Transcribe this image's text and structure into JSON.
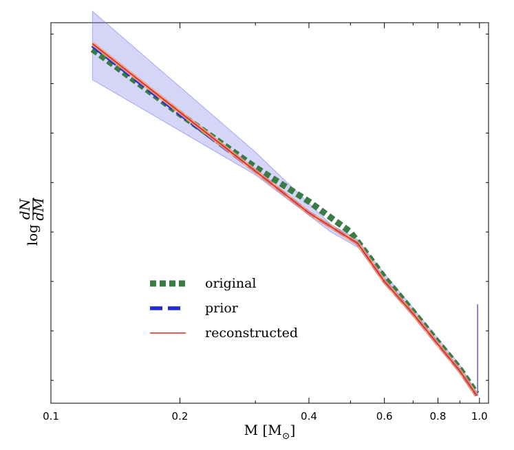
{
  "chart_data": {
    "type": "line",
    "title": "",
    "xlabel": {
      "main": "M [M",
      "subscript": "⊙",
      "close": "]"
    },
    "ylabel": {
      "prefix": "log",
      "numerator": "dN",
      "denominator": "dM"
    },
    "x_scale": "log",
    "xlim": [
      0.1,
      1.05
    ],
    "ylim": [
      0.0,
      1.0
    ],
    "x_ticks": [
      {
        "value": 0.1,
        "label": "0.1"
      },
      {
        "value": 0.2,
        "label": "0.2"
      },
      {
        "value": 0.4,
        "label": "0.4"
      },
      {
        "value": 0.6,
        "label": "0.6"
      },
      {
        "value": 0.8,
        "label": "0.8"
      },
      {
        "value": 1.0,
        "label": "1.0"
      }
    ],
    "x_minor_ticks": [
      0.3,
      0.5,
      0.7,
      0.9
    ],
    "y_ticks_unlabeled": [
      0.06,
      0.19,
      0.32,
      0.45,
      0.58,
      0.71,
      0.84,
      0.97
    ],
    "legend_position": "lower-left",
    "band": {
      "name": "prior uncertainty",
      "color": "#7b7bea",
      "x": [
        0.125,
        0.3,
        0.45,
        0.52,
        0.6,
        0.7,
        0.8,
        0.9,
        0.985
      ],
      "upper": [
        1.03,
        0.66,
        0.47,
        0.43,
        0.34,
        0.25,
        0.17,
        0.1,
        0.03
      ],
      "lower": [
        0.85,
        0.6,
        0.45,
        0.41,
        0.33,
        0.24,
        0.16,
        0.09,
        0.02
      ]
    },
    "spike": {
      "x": 0.99,
      "y_low": 0.02,
      "y_high": 0.26,
      "color": "#5a5ae0"
    },
    "series": [
      {
        "name": "original",
        "color": "#3a7d44",
        "style": "dotted-thick",
        "x": [
          0.125,
          0.2,
          0.3,
          0.4,
          0.5,
          0.6,
          0.7,
          0.8,
          0.9,
          0.985
        ],
        "y": [
          0.93,
          0.76,
          0.62,
          0.53,
          0.45,
          0.33,
          0.24,
          0.16,
          0.09,
          0.025
        ]
      },
      {
        "name": "prior",
        "color": "#1f2dd6",
        "style": "dashed",
        "x": [
          0.125,
          0.2,
          0.3,
          0.4,
          0.52,
          0.6,
          0.7,
          0.8,
          0.9,
          0.985
        ],
        "y": [
          0.94,
          0.76,
          0.61,
          0.5,
          0.42,
          0.32,
          0.235,
          0.155,
          0.085,
          0.02
        ]
      },
      {
        "name": "reconstructed",
        "color": "#e8231e",
        "style": "solid",
        "x": [
          0.125,
          0.2,
          0.3,
          0.4,
          0.52,
          0.6,
          0.7,
          0.8,
          0.9,
          0.985
        ],
        "y": [
          0.945,
          0.765,
          0.61,
          0.5,
          0.42,
          0.32,
          0.235,
          0.155,
          0.085,
          0.02
        ]
      }
    ]
  }
}
